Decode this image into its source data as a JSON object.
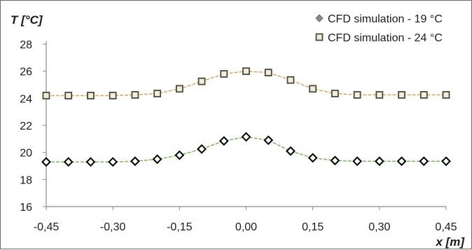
{
  "chart_data": {
    "type": "line",
    "title": "",
    "ylabel": "T [°C]",
    "xlabel": "x [m]",
    "xlim": [
      -0.45,
      0.45
    ],
    "ylim": [
      16,
      28
    ],
    "xticks": [
      -0.45,
      -0.3,
      -0.15,
      0.0,
      0.15,
      0.3,
      0.45
    ],
    "xtick_labels": [
      "-0,45",
      "-0,30",
      "-0,15",
      "0,00",
      "0,15",
      "0,30",
      "0,45"
    ],
    "yticks": [
      16,
      18,
      20,
      22,
      24,
      26,
      28
    ],
    "ytick_labels": [
      "16",
      "18",
      "20",
      "22",
      "24",
      "26",
      "28"
    ],
    "grid": false,
    "legend_position": "top-right",
    "x": [
      -0.45,
      -0.4,
      -0.35,
      -0.3,
      -0.25,
      -0.2,
      -0.15,
      -0.1,
      -0.05,
      0.0,
      0.05,
      0.1,
      0.15,
      0.2,
      0.25,
      0.3,
      0.35,
      0.4,
      0.45
    ],
    "series": [
      {
        "name": "CFD simulation - 19 °C",
        "marker": "diamond",
        "color": "#000000",
        "line_color": "#7cb95a",
        "values": [
          19.3,
          19.3,
          19.3,
          19.3,
          19.35,
          19.5,
          19.8,
          20.25,
          20.85,
          21.15,
          20.9,
          20.1,
          19.6,
          19.4,
          19.35,
          19.35,
          19.35,
          19.35,
          19.35
        ]
      },
      {
        "name": "CFD simulation - 24 °C",
        "marker": "square",
        "color": "#4a4a3a",
        "line_color": "#e0a35a",
        "values": [
          24.2,
          24.2,
          24.2,
          24.2,
          24.25,
          24.35,
          24.7,
          25.25,
          25.8,
          26.0,
          25.9,
          25.35,
          24.7,
          24.35,
          24.25,
          24.25,
          24.25,
          24.25,
          24.25
        ]
      }
    ]
  }
}
